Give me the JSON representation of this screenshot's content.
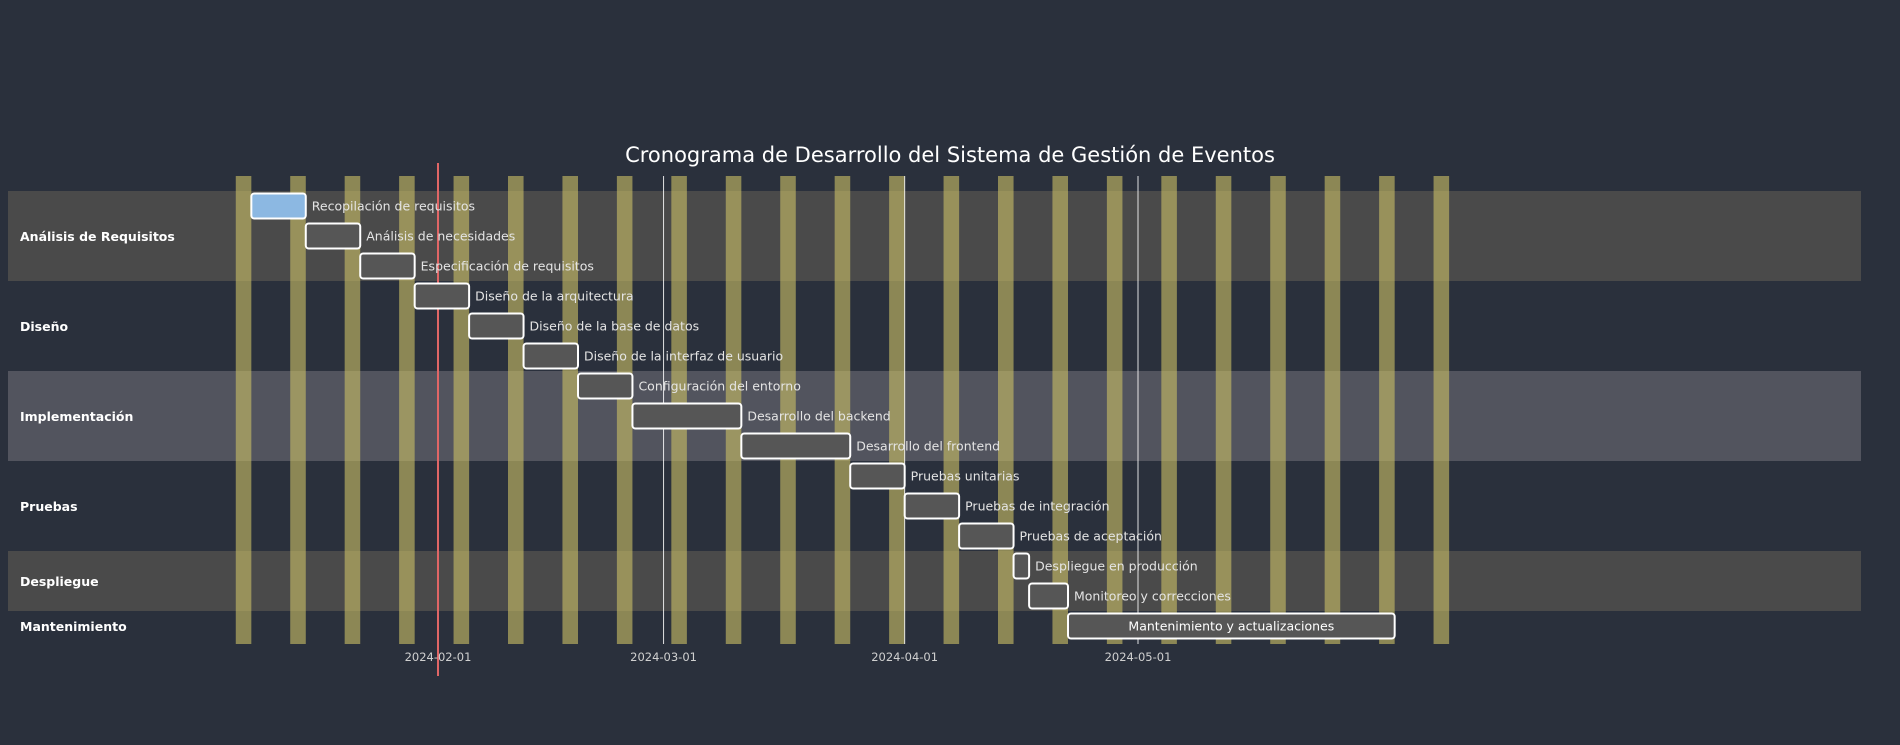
{
  "chart_data": {
    "type": "gantt",
    "title": "Cronograma de Desarrollo del Sistema de Gestión de Eventos",
    "x_axis": {
      "range": [
        "2024-01-06",
        "2024-06-14"
      ],
      "ticks": [
        "2024-02-01",
        "2024-03-01",
        "2024-04-01",
        "2024-05-01"
      ]
    },
    "today_marker": "2024-02-01",
    "weekend_highlight": true,
    "sections": [
      {
        "name": "Análisis de Requisitos",
        "tasks": [
          {
            "name": "Recopilación de requisitos",
            "start": "2024-01-08",
            "end": "2024-01-15",
            "active": true
          },
          {
            "name": "Análisis de necesidades",
            "start": "2024-01-15",
            "end": "2024-01-22"
          },
          {
            "name": "Especificación de requisitos",
            "start": "2024-01-22",
            "end": "2024-01-29"
          }
        ]
      },
      {
        "name": "Diseño",
        "tasks": [
          {
            "name": "Diseño de la arquitectura",
            "start": "2024-01-29",
            "end": "2024-02-05"
          },
          {
            "name": "Diseño de la base de datos",
            "start": "2024-02-05",
            "end": "2024-02-12"
          },
          {
            "name": "Diseño de la interfaz de usuario",
            "start": "2024-02-12",
            "end": "2024-02-19"
          }
        ]
      },
      {
        "name": "Implementación",
        "tasks": [
          {
            "name": "Configuración del entorno",
            "start": "2024-02-19",
            "end": "2024-02-26"
          },
          {
            "name": "Desarrollo del backend",
            "start": "2024-02-26",
            "end": "2024-03-11"
          },
          {
            "name": "Desarrollo del frontend",
            "start": "2024-03-11",
            "end": "2024-03-25"
          }
        ]
      },
      {
        "name": "Pruebas",
        "tasks": [
          {
            "name": "Pruebas unitarias",
            "start": "2024-03-25",
            "end": "2024-04-01"
          },
          {
            "name": "Pruebas de integración",
            "start": "2024-04-01",
            "end": "2024-04-08"
          },
          {
            "name": "Pruebas de aceptación",
            "start": "2024-04-08",
            "end": "2024-04-15"
          }
        ]
      },
      {
        "name": "Despliegue",
        "tasks": [
          {
            "name": "Despliegue en producción",
            "start": "2024-04-15",
            "end": "2024-04-17"
          },
          {
            "name": "Monitoreo y correcciones",
            "start": "2024-04-17",
            "end": "2024-04-22"
          }
        ]
      },
      {
        "name": "Mantenimiento",
        "tasks": [
          {
            "name": "Mantenimiento y actualizaciones",
            "start": "2024-04-22",
            "end": "2024-06-03"
          }
        ]
      }
    ]
  },
  "colors": {
    "background": "#2a303c",
    "section_band_light": "#4a4a4a",
    "section_band_dark": "#2a303c",
    "section_band_highlight": "#52545e",
    "weekend_bar": "#c8bd66",
    "task_fill": "#565656",
    "task_fill_active": "#8cb8e2",
    "task_border": "#ffffff",
    "today_line": "#e06666",
    "grid_line": "#ffffff"
  }
}
